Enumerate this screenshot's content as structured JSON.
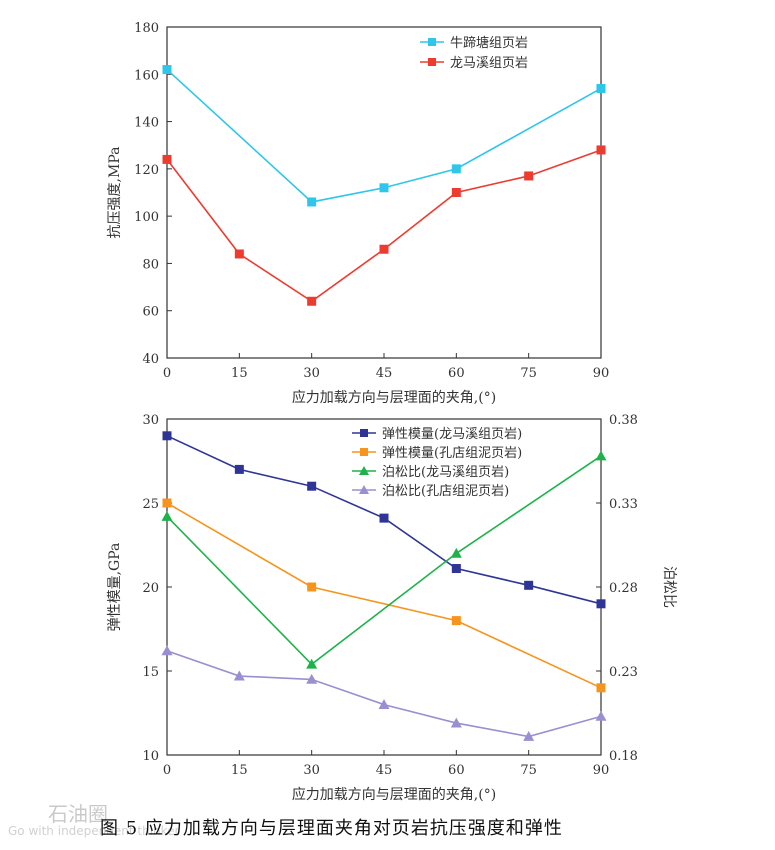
{
  "chart_data": [
    {
      "type": "line",
      "xlabel": "应力加载方向与层理面的夹角,(°)",
      "ylabel": "抗压强度,MPa",
      "x": [
        0,
        15,
        30,
        45,
        60,
        75,
        90
      ],
      "xticks": [
        "0",
        "15",
        "30",
        "45",
        "60",
        "75",
        "90"
      ],
      "ylim": [
        40,
        180
      ],
      "yticks": [
        "40",
        "60",
        "80",
        "100",
        "120",
        "140",
        "160",
        "180"
      ],
      "legend_position": "top-right",
      "series": [
        {
          "name": "牛蹄塘组页岩",
          "color": "#2ec6ea",
          "marker": "square",
          "x": [
            0,
            30,
            45,
            60,
            90
          ],
          "y": [
            162,
            106,
            112,
            120,
            154
          ]
        },
        {
          "name": "龙马溪组页岩",
          "color": "#ee3b2f",
          "marker": "square",
          "x": [
            0,
            15,
            30,
            45,
            60,
            75,
            90
          ],
          "y": [
            124,
            84,
            64,
            86,
            110,
            117,
            128
          ]
        }
      ]
    },
    {
      "type": "line",
      "xlabel": "应力加载方向与层理面的夹角,(°)",
      "ylabel": "弹性模量,GPa",
      "y2label": "泊松比",
      "x": [
        0,
        15,
        30,
        45,
        60,
        75,
        90
      ],
      "xticks": [
        "0",
        "15",
        "30",
        "45",
        "60",
        "75",
        "90"
      ],
      "ylim": [
        10,
        30
      ],
      "yticks": [
        "10",
        "15",
        "20",
        "25",
        "30"
      ],
      "y2lim": [
        0.18,
        0.38
      ],
      "y2ticks": [
        "0.18",
        "0.23",
        "0.28",
        "0.33",
        "0.38"
      ],
      "legend_position": "top-right",
      "series": [
        {
          "name": "弹性模量(龙马溪组页岩)",
          "axis": "left",
          "color": "#2e3597",
          "marker": "square",
          "y": [
            29,
            27,
            26,
            24.1,
            21.1,
            20.1,
            19
          ]
        },
        {
          "name": "弹性模量(孔店组泥页岩)",
          "axis": "left",
          "color": "#f7941d",
          "marker": "square",
          "x": [
            0,
            30,
            60,
            90
          ],
          "y": [
            25,
            20,
            18,
            14
          ]
        },
        {
          "name": "泊松比(龙马溪组页岩)",
          "axis": "right",
          "color": "#1db34a",
          "marker": "triangle",
          "x": [
            0,
            30,
            60,
            90
          ],
          "y": [
            0.322,
            0.234,
            0.3,
            0.358
          ]
        },
        {
          "name": "泊松比(孔店组泥页岩)",
          "axis": "right",
          "color": "#9a8fd0",
          "marker": "triangle",
          "y": [
            0.242,
            0.227,
            0.225,
            0.21,
            0.199,
            0.191,
            0.203
          ]
        }
      ]
    }
  ],
  "caption": "图 5    应力加载方向与层理面夹角对页岩抗压强度和弹性",
  "watermark": {
    "main": "石油圈",
    "sub": "Go with independent thinker"
  }
}
